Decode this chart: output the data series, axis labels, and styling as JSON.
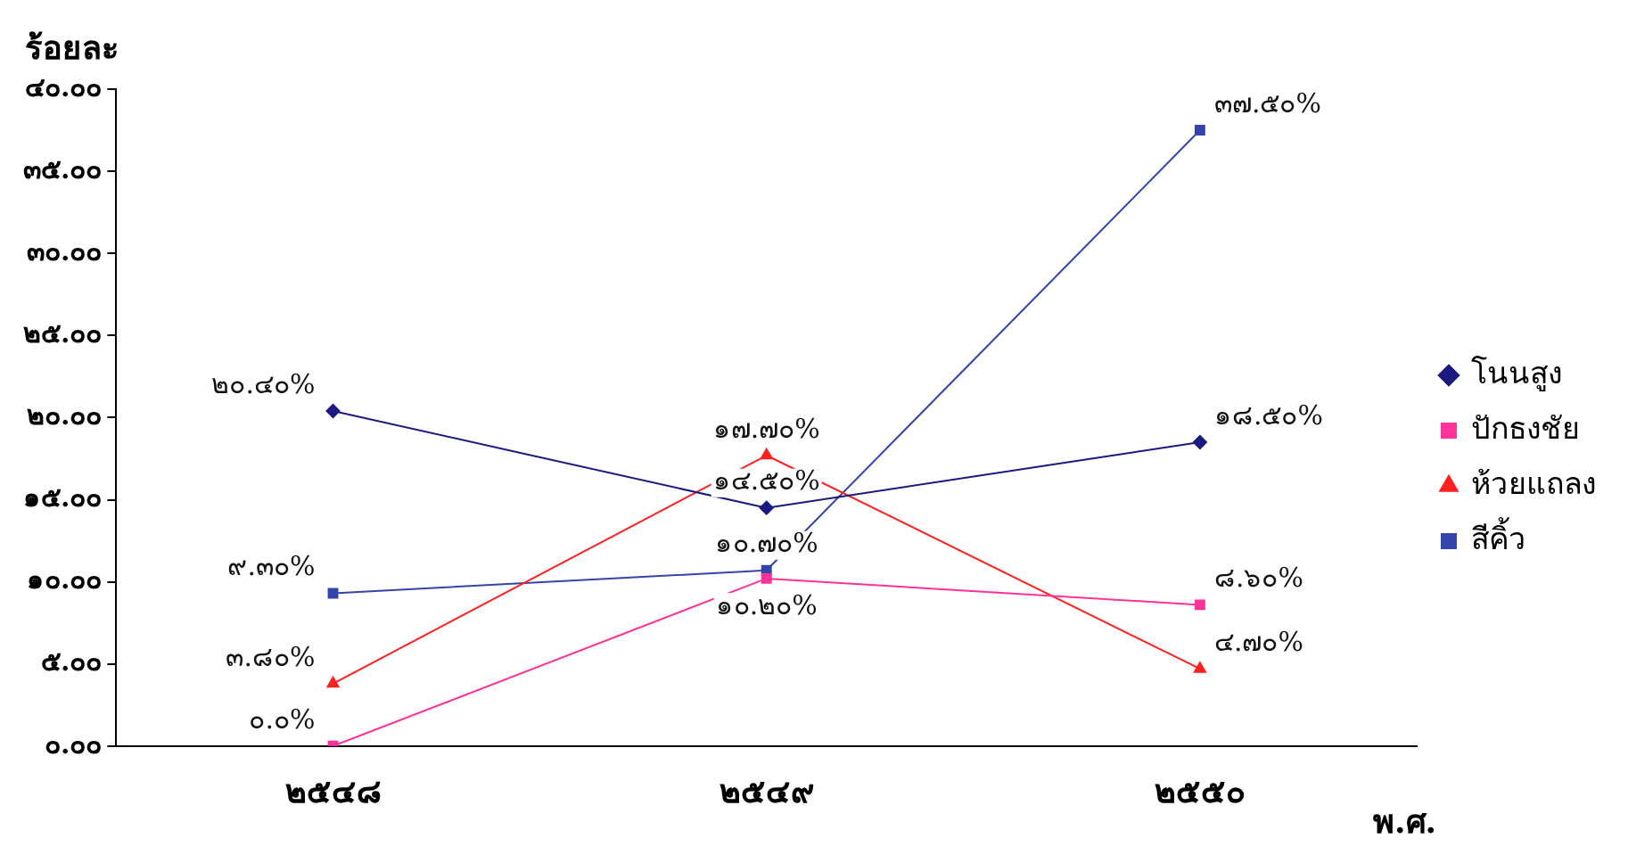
{
  "chart_data": {
    "type": "line",
    "xlabel": "พ.ศ.",
    "ylabel": "ร้อยละ",
    "categories": [
      "๒๕๔๘",
      "๒๕๔๙",
      "๒๕๕๐"
    ],
    "ylim": [
      0,
      40
    ],
    "yticks": [
      {
        "value": 0,
        "label": "๐.๐๐"
      },
      {
        "value": 5,
        "label": "๕.๐๐"
      },
      {
        "value": 10,
        "label": "๑๐.๐๐"
      },
      {
        "value": 15,
        "label": "๑๕.๐๐"
      },
      {
        "value": 20,
        "label": "๒๐.๐๐"
      },
      {
        "value": 25,
        "label": "๒๕.๐๐"
      },
      {
        "value": 30,
        "label": "๓๐.๐๐"
      },
      {
        "value": 35,
        "label": "๓๕.๐๐"
      },
      {
        "value": 40,
        "label": "๔๐.๐๐"
      }
    ],
    "legend": "right",
    "series": [
      {
        "name": "โนนสูง",
        "color": "#1a1a80",
        "marker": "diamond",
        "values": [
          20.4,
          14.5,
          18.5
        ],
        "value_labels": [
          "๒๐.๔๐%",
          "๑๔.๕๐%",
          "๑๘.๕๐%"
        ]
      },
      {
        "name": "ปักธงชัย",
        "color": "#ff3399",
        "marker": "square",
        "values": [
          0,
          10.2,
          8.6
        ],
        "value_labels": [
          "๐.๐%",
          "๑๐.๒๐%",
          "๘.๖๐%"
        ]
      },
      {
        "name": "ห้วยแถลง",
        "color": "#ff2020",
        "marker": "triangle",
        "values": [
          3.8,
          17.7,
          4.7
        ],
        "value_labels": [
          "๓.๘๐%",
          "๑๗.๗๐%",
          "๔.๗๐%"
        ]
      },
      {
        "name": "สีคิ้ว",
        "color": "#3344aa",
        "marker": "square",
        "values": [
          9.3,
          10.7,
          37.5
        ],
        "value_labels": [
          "๙.๓๐%",
          "๑๐.๗๐%",
          "๓๗.๕๐%"
        ]
      }
    ]
  }
}
